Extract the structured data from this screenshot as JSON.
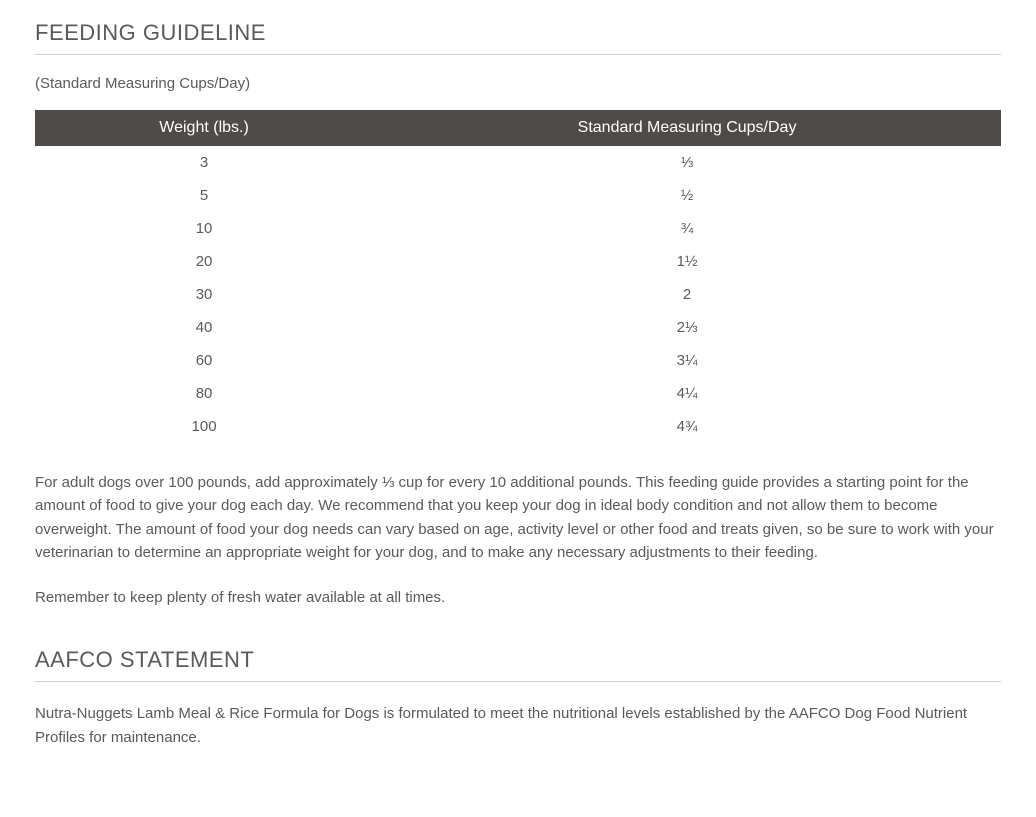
{
  "colors": {
    "text": "#5a5a5a",
    "header_bg": "#4f4b49",
    "header_text": "#ffffff",
    "divider": "#d0d0d0",
    "background": "#ffffff"
  },
  "typography": {
    "heading_fontsize": 22,
    "body_fontsize": 15,
    "table_header_fontsize": 16
  },
  "feeding": {
    "heading": "FEEDING GUIDELINE",
    "subtitle": "(Standard Measuring Cups/Day)",
    "table": {
      "type": "table",
      "columns": [
        "Weight (lbs.)",
        "Standard Measuring Cups/Day"
      ],
      "column_widths": [
        "35%",
        "65%"
      ],
      "header_bg": "#4f4b49",
      "header_color": "#ffffff",
      "cell_align": "center",
      "rows": [
        [
          "3",
          "⅓"
        ],
        [
          "5",
          "½"
        ],
        [
          "10",
          "¾"
        ],
        [
          "20",
          "1½"
        ],
        [
          "30",
          "2"
        ],
        [
          "40",
          "2⅓"
        ],
        [
          "60",
          "3¼"
        ],
        [
          "80",
          "4¼"
        ],
        [
          "100",
          "4¾"
        ]
      ]
    },
    "paragraph1": "For adult dogs over 100 pounds, add approximately ⅓ cup for every 10 additional pounds. This feeding guide provides a starting point for the amount of food to give your dog each day. We recommend that you keep your dog in ideal body condition and not allow them to become overweight. The amount of food your dog needs can vary based on age, activity level or other food and treats given, so be sure to work with your veterinarian to determine an appropriate weight for your dog, and to make any necessary adjustments to their feeding.",
    "paragraph2": "Remember to keep plenty of fresh water available at all times."
  },
  "aafco": {
    "heading": "AAFCO STATEMENT",
    "paragraph": "Nutra-Nuggets Lamb Meal & Rice Formula for Dogs is formulated to meet the nutritional levels established by the AAFCO Dog Food Nutrient Profiles for maintenance."
  }
}
